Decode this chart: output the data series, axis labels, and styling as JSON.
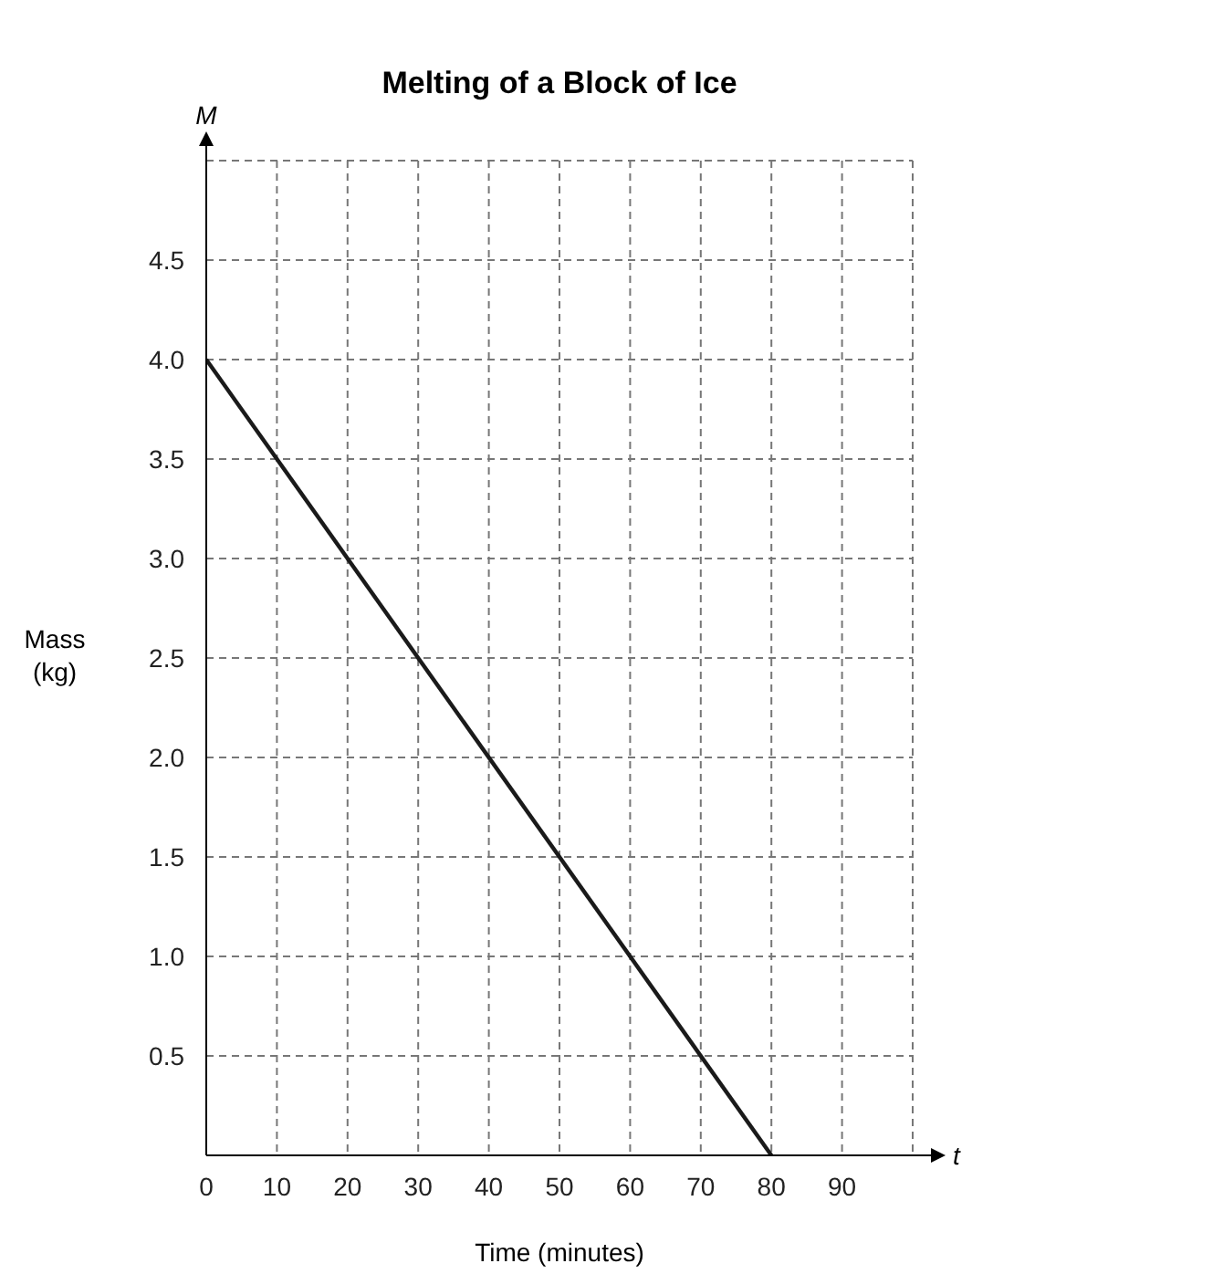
{
  "chart_data": {
    "type": "line",
    "title": "Melting of a Block of Ice",
    "xlabel": "Time (minutes)",
    "ylabel": "Mass (kg)",
    "annotations": [
      "M",
      "t"
    ],
    "x": [
      0,
      80
    ],
    "series": [
      {
        "color": "#1a1a1a",
        "values": [
          4,
          0
        ]
      }
    ],
    "xlim": [
      0,
      100
    ],
    "ylim": [
      0,
      5
    ],
    "xticks": [
      0,
      10,
      20,
      30,
      40,
      50,
      60,
      70,
      80,
      90,
      {
        "value": 100,
        "label": null
      }
    ],
    "yticks": [
      {
        "value": 0.5,
        "label": "0.5"
      },
      {
        "value": 1,
        "label": "1.0"
      },
      {
        "value": 1.5,
        "label": "1.5"
      },
      {
        "value": 2,
        "label": "2.0"
      },
      {
        "value": 2.5,
        "label": "2.5"
      },
      {
        "value": 3,
        "label": "3.0"
      },
      {
        "value": 3.5,
        "label": "3.5"
      },
      {
        "value": 4,
        "label": "4.0"
      },
      {
        "value": 4.5,
        "label": "4.5"
      },
      {
        "value": 5,
        "label": null
      }
    ],
    "grid": true,
    "marker": "none",
    "line_style": "solid"
  }
}
